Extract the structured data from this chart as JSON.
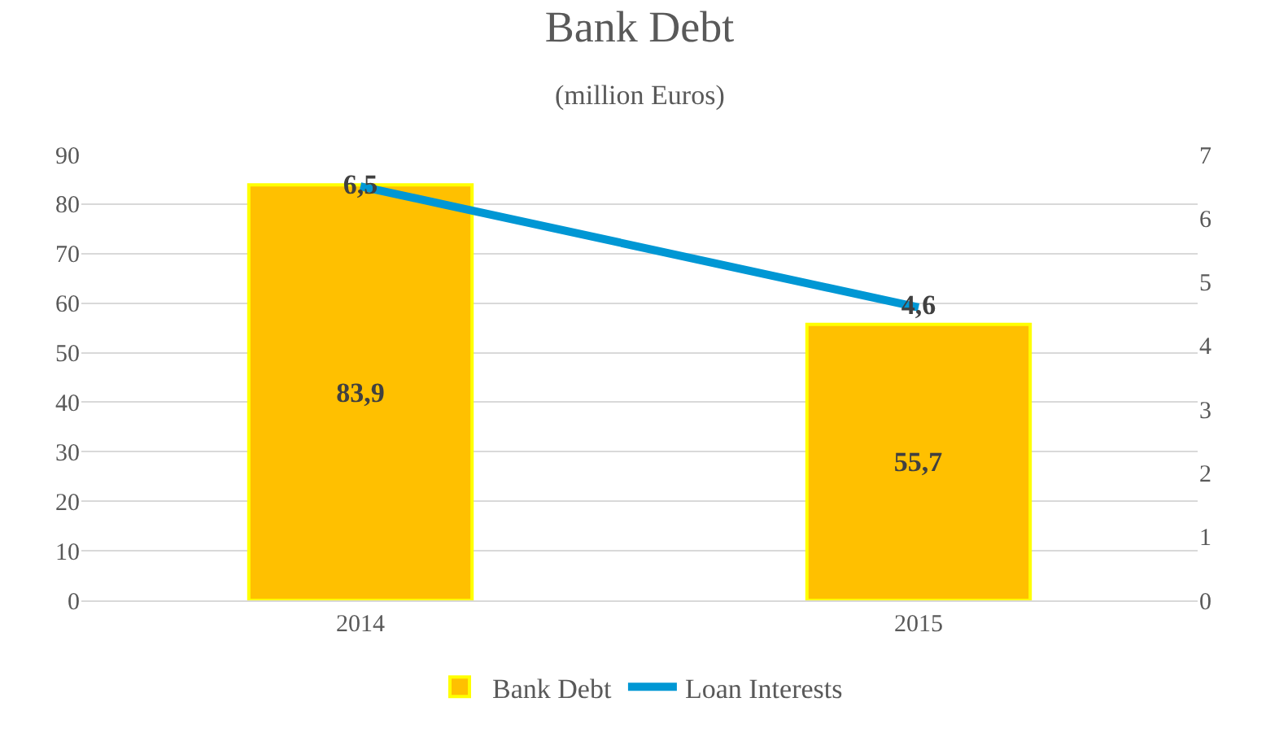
{
  "chart_data": {
    "type": "bar",
    "title": "Bank Debt",
    "subtitle": "(million Euros)",
    "categories": [
      "2014",
      "2015"
    ],
    "series": [
      {
        "name": "Bank Debt",
        "color": "#ffc000",
        "values": [
          83.9,
          55.7
        ],
        "value_labels": [
          "83,9",
          "55,7"
        ]
      },
      {
        "name": "Loan Interests",
        "type": "line",
        "axis": "y2",
        "color": "#0097d4",
        "values": [
          6.5,
          4.6
        ],
        "value_labels": [
          "6,5",
          "4,6"
        ]
      }
    ],
    "ylim": [
      0,
      90
    ],
    "yticks": [
      0,
      10,
      20,
      30,
      40,
      50,
      60,
      70,
      80,
      90
    ],
    "y2lim": [
      0,
      7
    ],
    "y2ticks": [
      0,
      1,
      2,
      3,
      4,
      5,
      6,
      7
    ],
    "grid": "y",
    "legend": "bottom",
    "marker": "none"
  }
}
